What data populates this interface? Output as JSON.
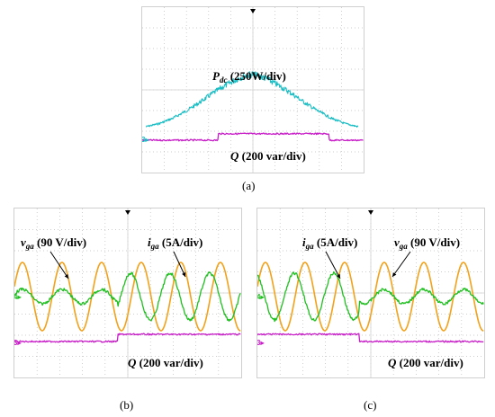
{
  "chart_data": [
    {
      "panel": "(a)",
      "type": "line",
      "label": "(a)",
      "series": [
        {
          "name": "P_dc (250W/div)",
          "label_main": "P",
          "label_sub": "dc",
          "label_rest": " (250W/div)",
          "color": "#19bdc4",
          "shape": "triangular ramp peaking at center",
          "values": [
            0,
            0.15,
            0.4,
            0.75,
            1.15,
            1.6,
            2.0,
            2.35,
            2.55,
            2.35,
            2.0,
            1.6,
            1.15,
            0.75,
            0.4,
            0.15,
            0
          ]
        },
        {
          "name": "Q (200 var/div)",
          "label_main": "Q",
          "label_sub": "",
          "label_rest": " (200 var/div)",
          "color": "#c81ec8",
          "shape": "step up then down",
          "values": [
            0,
            0,
            0,
            0,
            0,
            0,
            0.6,
            0.6,
            0.6,
            0.6,
            0.6,
            0.6,
            0.6,
            0.6,
            0,
            0,
            0
          ]
        }
      ],
      "markers": [
        "3"
      ]
    },
    {
      "panel": "(b)",
      "type": "line",
      "label": "(b)",
      "series": [
        {
          "name": "v_ga (90 V/div)",
          "label_main": "v",
          "label_sub": "ga",
          "label_rest": " (90 V/div)",
          "color": "#f2a21b",
          "shape": "sinusoid, constant amplitude"
        },
        {
          "name": "i_ga (5A/div)",
          "label_main": "i",
          "label_sub": "ga",
          "label_rest": " (5A/div)",
          "color": "#1fbf1f",
          "shape": "small amplitude in phase, then large amplitude shifted after step"
        },
        {
          "name": "Q (200 var/div)",
          "label_main": "Q",
          "label_sub": "",
          "label_rest": " (200 var/div)",
          "color": "#c81ec8",
          "shape": "step up at center"
        }
      ],
      "markers": [
        "4",
        "3"
      ]
    },
    {
      "panel": "(c)",
      "type": "line",
      "label": "(c)",
      "series": [
        {
          "name": "i_ga (5A/div)",
          "label_main": "i",
          "label_sub": "ga",
          "label_rest": " (5A/div)",
          "color": "#1fbf1f",
          "shape": "large amplitude shifted, then small amplitude after step"
        },
        {
          "name": "v_ga (90 V/div)",
          "label_main": "v",
          "label_sub": "ga",
          "label_rest": " (90 V/div)",
          "color": "#f2a21b",
          "shape": "sinusoid, constant amplitude"
        },
        {
          "name": "Q (200 var/div)",
          "label_main": "Q",
          "label_sub": "",
          "label_rest": " (200 var/div)",
          "color": "#c81ec8",
          "shape": "step down at center"
        }
      ],
      "markers": [
        "4",
        "3"
      ]
    }
  ]
}
